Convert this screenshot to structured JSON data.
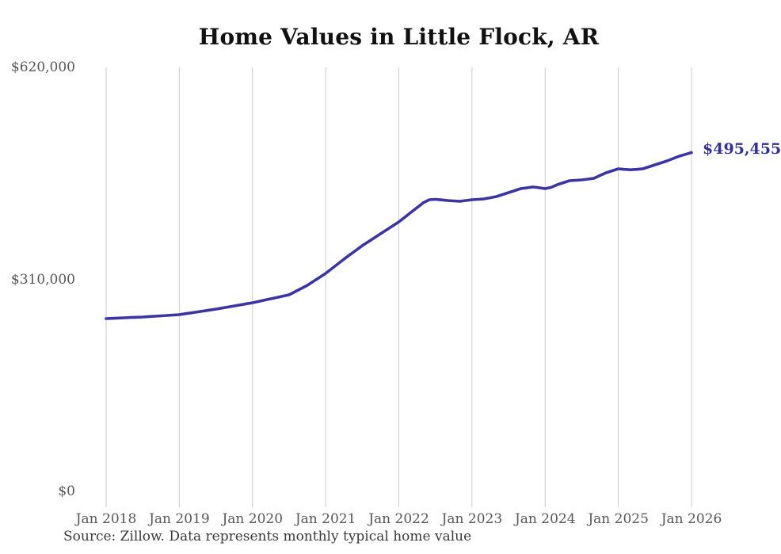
{
  "title": "Home Values in Little Flock, AR",
  "source_note": "Source: Zillow. Data represents monthly typical home value",
  "latest_value_label": "$495,455",
  "colors": {
    "line": "#3b35a2",
    "latest_label": "#32309e",
    "title_text": "#111111",
    "axis_text": "#575757",
    "gridline": "#cccccc",
    "background": "#ffffff",
    "source_text": "#3a3a3a"
  },
  "y_axis": {
    "ticks": [
      {
        "label": "$0",
        "value": 0
      },
      {
        "label": "$310,000",
        "value": 310000
      },
      {
        "label": "$620,000",
        "value": 620000
      }
    ]
  },
  "x_axis": {
    "ticks": [
      "Jan 2018",
      "Jan 2019",
      "Jan 2020",
      "Jan 2021",
      "Jan 2022",
      "Jan 2023",
      "Jan 2024",
      "Jan 2025",
      "Jan 2026"
    ]
  },
  "chart_data": {
    "type": "line",
    "title": "Home Values in Little Flock, AR",
    "unit": "USD",
    "x_start": "2018-01",
    "x_interval": "monthly",
    "x_tick_labels": [
      "Jan 2018",
      "Jan 2019",
      "Jan 2020",
      "Jan 2021",
      "Jan 2022",
      "Jan 2023",
      "Jan 2024",
      "Jan 2025",
      "Jan 2026"
    ],
    "ylim": [
      0,
      620000
    ],
    "y_tick_values": [
      0,
      310000,
      620000
    ],
    "grid": "vertical-only",
    "legend": "none",
    "last_value": 495455,
    "last_value_label": "$495,455",
    "values": [
      252600,
      253000,
      253400,
      253800,
      254200,
      254600,
      255000,
      255600,
      256100,
      256700,
      257300,
      257900,
      258400,
      259800,
      261100,
      262500,
      263800,
      265200,
      266500,
      268100,
      269600,
      271200,
      272700,
      274300,
      275800,
      277700,
      279700,
      281600,
      283500,
      285500,
      287400,
      292000,
      296700,
      301300,
      307100,
      312900,
      318700,
      325600,
      332600,
      339500,
      346100,
      352700,
      359300,
      365100,
      370800,
      376600,
      382400,
      388200,
      394000,
      401000,
      408000,
      415000,
      421900,
      426500,
      427000,
      426200,
      425300,
      424700,
      424100,
      425300,
      426500,
      427100,
      427700,
      429400,
      431100,
      434000,
      436900,
      439800,
      442700,
      443900,
      445100,
      444000,
      442700,
      444500,
      448500,
      451400,
      454300,
      454900,
      455400,
      456600,
      457800,
      461900,
      465900,
      468800,
      471700,
      470800,
      470300,
      470800,
      471700,
      474600,
      477500,
      480400,
      483200,
      486700,
      490200,
      492800,
      495455
    ]
  }
}
